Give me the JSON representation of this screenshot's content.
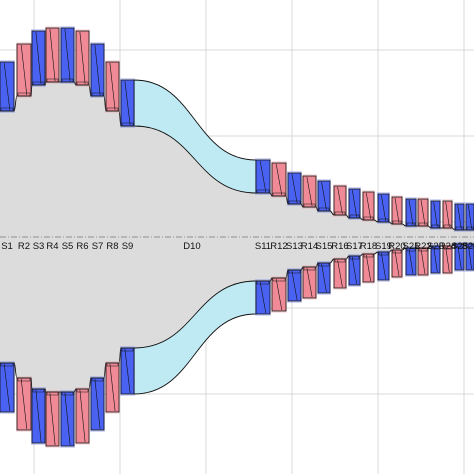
{
  "colors": {
    "background": "#ffffff",
    "grid": "#d9d9d9",
    "core": "#dcdcdc",
    "axis": "#777777",
    "drift": "#bfeaf3",
    "blue": "#4a62f2",
    "red": "#f08a96",
    "outline": "#111111"
  },
  "elements": [
    {
      "label": "S1",
      "type": "S",
      "aperture": 0.84
    },
    {
      "label": "R2",
      "type": "R",
      "aperture": 0.88
    },
    {
      "label": "S3",
      "type": "S",
      "aperture": 0.91
    },
    {
      "label": "R4",
      "type": "R",
      "aperture": 0.92
    },
    {
      "label": "S5",
      "type": "S",
      "aperture": 0.92
    },
    {
      "label": "R6",
      "type": "R",
      "aperture": 0.91
    },
    {
      "label": "S7",
      "type": "S",
      "aperture": 0.88
    },
    {
      "label": "R8",
      "type": "R",
      "aperture": 0.84
    },
    {
      "label": "S9",
      "type": "S",
      "aperture": 0.8
    },
    {
      "label": "D10",
      "type": "D",
      "aperture": 0.79
    },
    {
      "label": "S11",
      "type": "S",
      "aperture": 0.62
    },
    {
      "label": "R12",
      "type": "R",
      "aperture": 0.61
    },
    {
      "label": "S13",
      "type": "S",
      "aperture": 0.59
    },
    {
      "label": "R14",
      "type": "R",
      "aperture": 0.58
    },
    {
      "label": "S15",
      "type": "S",
      "aperture": 0.57
    },
    {
      "label": "R16",
      "type": "R",
      "aperture": 0.56
    },
    {
      "label": "S17",
      "type": "S",
      "aperture": 0.55
    },
    {
      "label": "R18",
      "type": "R",
      "aperture": 0.545
    },
    {
      "label": "S19",
      "type": "S",
      "aperture": 0.54
    },
    {
      "label": "R20",
      "type": "R",
      "aperture": 0.535
    },
    {
      "label": "S21",
      "type": "S",
      "aperture": 0.53
    },
    {
      "label": "R22",
      "type": "R",
      "aperture": 0.53
    },
    {
      "label": "S23",
      "type": "S",
      "aperture": 0.525
    },
    {
      "label": "R24",
      "type": "R",
      "aperture": 0.525
    },
    {
      "label": "S25",
      "type": "S",
      "aperture": 0.52
    },
    {
      "label": "S26",
      "type": "S",
      "aperture": 0.52
    }
  ]
}
